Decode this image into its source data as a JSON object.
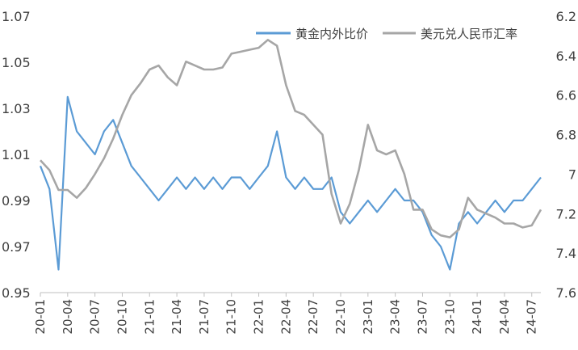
{
  "chart_data": {
    "type": "line",
    "title": "",
    "xlabel": "",
    "ylabel_left": "",
    "ylabel_right": "",
    "legend_position": "top-right",
    "grid": false,
    "x_tick_labels": [
      "20-01",
      "20-04",
      "20-07",
      "20-10",
      "21-01",
      "21-04",
      "21-07",
      "21-10",
      "22-01",
      "22-04",
      "22-07",
      "22-10",
      "23-01",
      "23-04",
      "23-07",
      "23-10",
      "24-01",
      "24-04",
      "24-07"
    ],
    "y_left": {
      "min": 0.95,
      "max": 1.07,
      "ticks": [
        "0.95",
        "0.97",
        "0.99",
        "1.01",
        "1.03",
        "1.05",
        "1.07"
      ]
    },
    "y_right": {
      "min": 6.2,
      "max": 7.6,
      "reversed": true,
      "ticks": [
        "6.2",
        "6.4",
        "6.6",
        "6.8",
        "7",
        "7.2",
        "7.4",
        "7.6"
      ]
    },
    "series": [
      {
        "name": "黄金内外比价",
        "axis": "left",
        "color": "#5B9BD5",
        "x": [
          "2020-01",
          "2020-02",
          "2020-03",
          "2020-04",
          "2020-05",
          "2020-06",
          "2020-07",
          "2020-08",
          "2020-09",
          "2020-10",
          "2020-11",
          "2020-12",
          "2021-01",
          "2021-02",
          "2021-03",
          "2021-04",
          "2021-05",
          "2021-06",
          "2021-07",
          "2021-08",
          "2021-09",
          "2021-10",
          "2021-11",
          "2021-12",
          "2022-01",
          "2022-02",
          "2022-03",
          "2022-04",
          "2022-05",
          "2022-06",
          "2022-07",
          "2022-08",
          "2022-09",
          "2022-10",
          "2022-11",
          "2022-12",
          "2023-01",
          "2023-02",
          "2023-03",
          "2023-04",
          "2023-05",
          "2023-06",
          "2023-07",
          "2023-08",
          "2023-09",
          "2023-10",
          "2023-11",
          "2023-12",
          "2024-01",
          "2024-02",
          "2024-03",
          "2024-04",
          "2024-05",
          "2024-06",
          "2024-07",
          "2024-08"
        ],
        "y": [
          1.005,
          0.995,
          0.96,
          1.035,
          1.02,
          1.015,
          1.01,
          1.02,
          1.025,
          1.015,
          1.005,
          1.0,
          0.995,
          0.99,
          0.995,
          1.0,
          0.995,
          1.0,
          0.995,
          1.0,
          0.995,
          1.0,
          1.0,
          0.995,
          1.0,
          1.005,
          1.02,
          1.0,
          0.995,
          1.0,
          0.995,
          0.995,
          1.0,
          0.985,
          0.98,
          0.985,
          0.99,
          0.985,
          0.99,
          0.995,
          0.99,
          0.99,
          0.985,
          0.975,
          0.97,
          0.96,
          0.98,
          0.985,
          0.98,
          0.985,
          0.99,
          0.985,
          0.99,
          0.99,
          0.995,
          1.0
        ]
      },
      {
        "name": "美元兑人民币汇率",
        "axis": "right",
        "color": "#A6A6A6",
        "x": [
          "2020-01",
          "2020-02",
          "2020-03",
          "2020-04",
          "2020-05",
          "2020-06",
          "2020-07",
          "2020-08",
          "2020-09",
          "2020-10",
          "2020-11",
          "2020-12",
          "2021-01",
          "2021-02",
          "2021-03",
          "2021-04",
          "2021-05",
          "2021-06",
          "2021-07",
          "2021-08",
          "2021-09",
          "2021-10",
          "2021-11",
          "2021-12",
          "2022-01",
          "2022-02",
          "2022-03",
          "2022-04",
          "2022-05",
          "2022-06",
          "2022-07",
          "2022-08",
          "2022-09",
          "2022-10",
          "2022-11",
          "2022-12",
          "2023-01",
          "2023-02",
          "2023-03",
          "2023-04",
          "2023-05",
          "2023-06",
          "2023-07",
          "2023-08",
          "2023-09",
          "2023-10",
          "2023-11",
          "2023-12",
          "2024-01",
          "2024-02",
          "2024-03",
          "2024-04",
          "2024-05",
          "2024-06",
          "2024-07",
          "2024-08"
        ],
        "y": [
          6.93,
          6.98,
          7.08,
          7.08,
          7.12,
          7.07,
          7.0,
          6.92,
          6.82,
          6.7,
          6.6,
          6.54,
          6.47,
          6.45,
          6.51,
          6.55,
          6.43,
          6.45,
          6.47,
          6.47,
          6.46,
          6.39,
          6.38,
          6.37,
          6.36,
          6.32,
          6.35,
          6.55,
          6.68,
          6.7,
          6.75,
          6.8,
          7.1,
          7.25,
          7.15,
          6.98,
          6.75,
          6.88,
          6.9,
          6.88,
          7.0,
          7.18,
          7.18,
          7.28,
          7.31,
          7.32,
          7.28,
          7.12,
          7.18,
          7.2,
          7.22,
          7.25,
          7.25,
          7.27,
          7.26,
          7.18
        ]
      }
    ]
  }
}
